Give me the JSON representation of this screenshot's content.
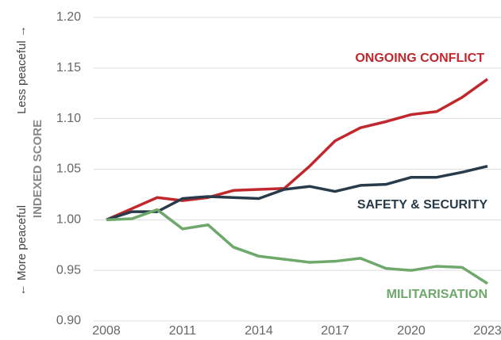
{
  "chart_data": {
    "type": "line",
    "y_label": "INDEXED SCORE",
    "y_label_top": "Less peaceful →",
    "y_label_bottom": "← More peaceful",
    "x": [
      2008,
      2009,
      2010,
      2011,
      2012,
      2013,
      2014,
      2015,
      2016,
      2017,
      2018,
      2019,
      2020,
      2021,
      2022,
      2023
    ],
    "xlim": [
      2008,
      2023
    ],
    "xticks": [
      2008,
      2011,
      2014,
      2017,
      2020,
      2023
    ],
    "ylim": [
      0.9,
      1.2
    ],
    "yticks": [
      {
        "value": 0.9,
        "label": "0.90"
      },
      {
        "value": 0.95,
        "label": "0.95"
      },
      {
        "value": 1.0,
        "label": "1.00"
      },
      {
        "value": 1.05,
        "label": "1.05"
      },
      {
        "value": 1.1,
        "label": "1.10"
      },
      {
        "value": 1.15,
        "label": "1.15"
      },
      {
        "value": 1.2,
        "label": "1.20"
      }
    ],
    "grid": true,
    "series": [
      {
        "name": "ONGOING CONFLICT",
        "color": "#c0282d",
        "values": [
          1.0,
          1.011,
          1.022,
          1.019,
          1.022,
          1.029,
          1.03,
          1.031,
          1.053,
          1.078,
          1.091,
          1.097,
          1.104,
          1.107,
          1.121,
          1.139
        ]
      },
      {
        "name": "SAFETY & SECURITY",
        "color": "#273b4a",
        "values": [
          1.0,
          1.008,
          1.008,
          1.021,
          1.023,
          1.022,
          1.021,
          1.03,
          1.033,
          1.028,
          1.034,
          1.035,
          1.042,
          1.042,
          1.047,
          1.053
        ]
      },
      {
        "name": "MILITARISATION",
        "color": "#6ea86b",
        "values": [
          1.0,
          1.001,
          1.01,
          0.991,
          0.995,
          0.973,
          0.964,
          0.961,
          0.958,
          0.959,
          0.962,
          0.952,
          0.95,
          0.954,
          0.953,
          0.937
        ]
      }
    ]
  }
}
